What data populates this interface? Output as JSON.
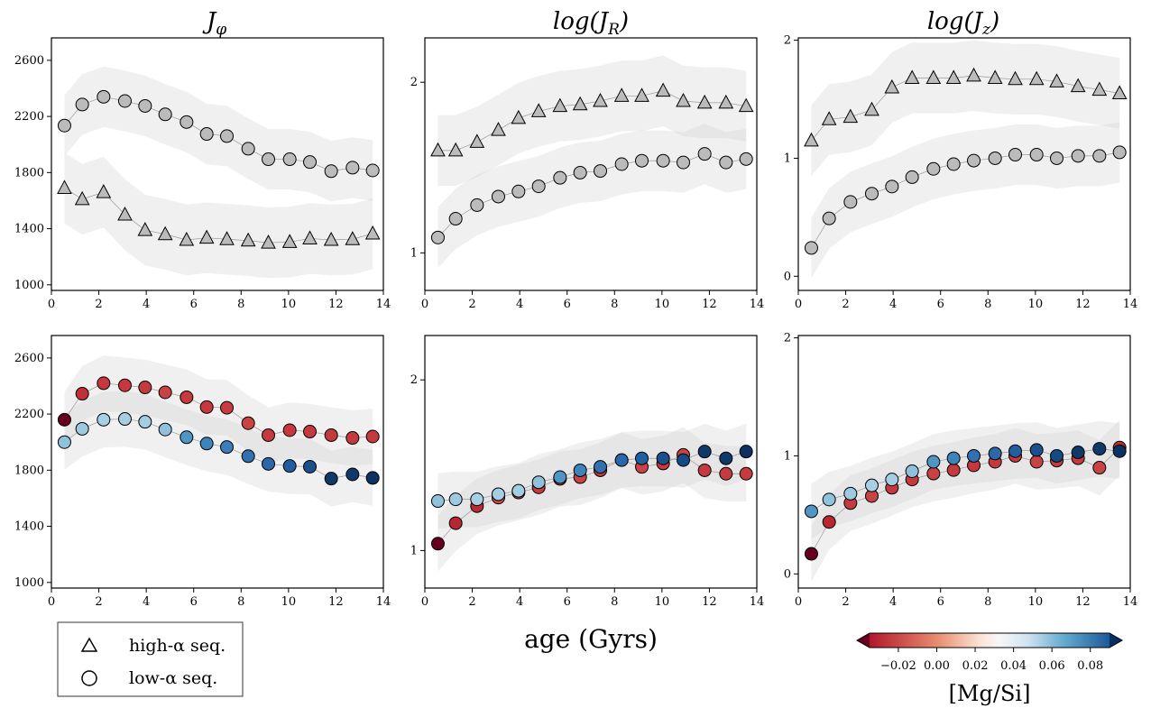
{
  "chart_data": [
    {
      "type": "scatter",
      "row": "top",
      "col": 0,
      "title": "J_φ",
      "xlabel": "",
      "ylabel": "",
      "xlim": [
        0,
        14
      ],
      "ylim": [
        960,
        2760
      ],
      "xticks": [
        0,
        2,
        4,
        6,
        8,
        10,
        12,
        14
      ],
      "yticks": [
        1000,
        1400,
        1800,
        2200,
        2600
      ],
      "grid": false,
      "series": [
        {
          "name": "high-α seq.",
          "marker": "triangle",
          "color": "#bbbbbb",
          "x": [
            0.55,
            1.3,
            2.2,
            3.1,
            3.95,
            4.8,
            5.7,
            6.55,
            7.4,
            8.3,
            9.15,
            10.05,
            10.9,
            11.8,
            12.7,
            13.55
          ],
          "y": [
            1690,
            1610,
            1660,
            1500,
            1390,
            1360,
            1320,
            1335,
            1325,
            1315,
            1300,
            1305,
            1330,
            1320,
            1325,
            1365
          ]
        },
        {
          "name": "low-α seq.",
          "marker": "circle",
          "color": "#bbbbbb",
          "x": [
            0.55,
            1.3,
            2.2,
            3.1,
            3.95,
            4.8,
            5.7,
            6.55,
            7.4,
            8.3,
            9.15,
            10.05,
            10.9,
            11.8,
            12.7,
            13.55
          ],
          "y": [
            2135,
            2285,
            2340,
            2310,
            2275,
            2215,
            2160,
            2075,
            2060,
            1970,
            1895,
            1895,
            1875,
            1810,
            1835,
            1815
          ]
        }
      ]
    },
    {
      "type": "scatter",
      "row": "top",
      "col": 1,
      "title": "log(J_R)",
      "xlabel": "",
      "ylabel": "",
      "xlim": [
        0,
        14
      ],
      "ylim": [
        0.78,
        2.26
      ],
      "xticks": [
        0,
        2,
        4,
        6,
        8,
        10,
        12,
        14
      ],
      "yticks": [
        1,
        2
      ],
      "grid": false,
      "series": [
        {
          "name": "high-α seq.",
          "marker": "triangle",
          "color": "#bbbbbb",
          "x": [
            0.55,
            1.3,
            2.2,
            3.1,
            3.95,
            4.8,
            5.7,
            6.55,
            7.4,
            8.3,
            9.15,
            10.05,
            10.9,
            11.8,
            12.7,
            13.55
          ],
          "y": [
            1.6,
            1.6,
            1.65,
            1.72,
            1.79,
            1.83,
            1.86,
            1.87,
            1.89,
            1.92,
            1.92,
            1.95,
            1.89,
            1.88,
            1.88,
            1.86
          ]
        },
        {
          "name": "low-α seq.",
          "marker": "circle",
          "color": "#bbbbbb",
          "x": [
            0.55,
            1.3,
            2.2,
            3.1,
            3.95,
            4.8,
            5.7,
            6.55,
            7.4,
            8.3,
            9.15,
            10.05,
            10.9,
            11.8,
            12.7,
            13.55
          ],
          "y": [
            1.09,
            1.2,
            1.28,
            1.33,
            1.36,
            1.39,
            1.44,
            1.47,
            1.48,
            1.52,
            1.54,
            1.54,
            1.53,
            1.58,
            1.53,
            1.55
          ]
        }
      ]
    },
    {
      "type": "scatter",
      "row": "top",
      "col": 2,
      "title": "log(J_z)",
      "xlabel": "",
      "ylabel": "",
      "xlim": [
        0,
        14
      ],
      "ylim": [
        -0.12,
        2.02
      ],
      "xticks": [
        0,
        2,
        4,
        6,
        8,
        10,
        12,
        14
      ],
      "yticks": [
        0,
        1,
        2
      ],
      "grid": false,
      "series": [
        {
          "name": "high-α seq.",
          "marker": "triangle",
          "color": "#bbbbbb",
          "x": [
            0.55,
            1.3,
            2.2,
            3.1,
            3.95,
            4.8,
            5.7,
            6.55,
            7.4,
            8.3,
            9.15,
            10.05,
            10.9,
            11.8,
            12.7,
            13.55
          ],
          "y": [
            1.15,
            1.33,
            1.35,
            1.41,
            1.6,
            1.68,
            1.68,
            1.68,
            1.7,
            1.68,
            1.67,
            1.67,
            1.65,
            1.61,
            1.58,
            1.55
          ]
        },
        {
          "name": "low-α seq.",
          "marker": "circle",
          "color": "#bbbbbb",
          "x": [
            0.55,
            1.3,
            2.2,
            3.1,
            3.95,
            4.8,
            5.7,
            6.55,
            7.4,
            8.3,
            9.15,
            10.05,
            10.9,
            11.8,
            12.7,
            13.55
          ],
          "y": [
            0.24,
            0.49,
            0.63,
            0.7,
            0.76,
            0.84,
            0.91,
            0.95,
            0.98,
            1.0,
            1.03,
            1.03,
            1.0,
            1.02,
            1.02,
            1.05
          ]
        }
      ]
    },
    {
      "type": "scatter",
      "row": "bottom",
      "col": 0,
      "title": "",
      "xlabel": "",
      "ylabel": "",
      "xlim": [
        0,
        14
      ],
      "ylim": [
        960,
        2760
      ],
      "xticks": [
        0,
        2,
        4,
        6,
        8,
        10,
        12,
        14
      ],
      "yticks": [
        1000,
        1400,
        1800,
        2200,
        2600
      ],
      "grid": false,
      "series": [
        {
          "marker": "circle",
          "x": [
            0.55,
            1.3,
            2.2,
            3.1,
            3.95,
            4.8,
            5.7,
            6.55,
            7.4,
            8.3,
            9.15,
            10.05,
            10.9,
            11.8,
            12.7,
            13.55
          ],
          "y": [
            2160,
            2345,
            2420,
            2405,
            2390,
            2355,
            2320,
            2250,
            2245,
            2135,
            2050,
            2085,
            2075,
            2050,
            2030,
            2040
          ],
          "colors": [
            "#67001f",
            "#c03037",
            "#c7373d",
            "#c7373d",
            "#c63a3f",
            "#c94244",
            "#c43a3e",
            "#c7393e",
            "#c63c40",
            "#c94244",
            "#c53a3f",
            "#c7373d",
            "#c53a3f",
            "#c43a3e",
            "#c53a3f",
            "#c43a3e"
          ]
        },
        {
          "marker": "circle",
          "x": [
            0.55,
            1.3,
            2.2,
            3.1,
            3.95,
            4.8,
            5.7,
            6.55,
            7.4,
            8.3,
            9.15,
            10.05,
            10.9,
            11.8,
            12.7,
            13.55
          ],
          "y": [
            2000,
            2095,
            2160,
            2165,
            2145,
            2090,
            2035,
            1990,
            1965,
            1900,
            1845,
            1830,
            1825,
            1740,
            1770,
            1745
          ],
          "colors": [
            "#8fc2dd",
            "#9dcae1",
            "#a8d0e4",
            "#a5cee3",
            "#a2cde2",
            "#8fc1dd",
            "#4f96c4",
            "#3d84bc",
            "#3a7fb9",
            "#3171b0",
            "#2a68a9",
            "#225e9f",
            "#1b508c",
            "#0e3969",
            "#0e3a6b",
            "#0d3262"
          ]
        }
      ]
    },
    {
      "type": "scatter",
      "row": "bottom",
      "col": 1,
      "title": "",
      "xlabel": "age (Gyrs)",
      "ylabel": "",
      "xlim": [
        0,
        14
      ],
      "ylim": [
        0.78,
        2.26
      ],
      "xticks": [
        0,
        2,
        4,
        6,
        8,
        10,
        12,
        14
      ],
      "yticks": [
        1,
        2
      ],
      "grid": false,
      "series": [
        {
          "marker": "circle",
          "x": [
            0.55,
            1.3,
            2.2,
            3.1,
            3.95,
            4.8,
            5.7,
            6.55,
            7.4,
            8.3,
            9.15,
            10.05,
            10.9,
            11.8,
            12.7,
            13.55
          ],
          "y": [
            1.04,
            1.16,
            1.26,
            1.31,
            1.34,
            1.37,
            1.42,
            1.43,
            1.47,
            1.53,
            1.49,
            1.51,
            1.56,
            1.47,
            1.45,
            1.45
          ],
          "colors": [
            "#67001f",
            "#b8262f",
            "#b92a31",
            "#cc4748",
            "#c94244",
            "#c43a3e",
            "#c7393e",
            "#c94244",
            "#c7373d",
            "#c63a3f",
            "#c94244",
            "#c7373d",
            "#c94244",
            "#c53a3f",
            "#c43a3e",
            "#c53a3f"
          ]
        },
        {
          "marker": "circle",
          "x": [
            0.55,
            1.3,
            2.2,
            3.1,
            3.95,
            4.8,
            5.7,
            6.55,
            7.4,
            8.3,
            9.15,
            10.05,
            10.9,
            11.8,
            12.7,
            13.55
          ],
          "y": [
            1.29,
            1.3,
            1.3,
            1.33,
            1.35,
            1.4,
            1.43,
            1.47,
            1.49,
            1.53,
            1.54,
            1.54,
            1.53,
            1.58,
            1.54,
            1.58
          ],
          "colors": [
            "#8fc2dd",
            "#9dcae1",
            "#a8d0e4",
            "#a5cee3",
            "#a2cde2",
            "#8fc1dd",
            "#4f96c4",
            "#3d84bc",
            "#3171b0",
            "#2a68a9",
            "#225e9f",
            "#1b508c",
            "#134b85",
            "#0e3969",
            "#0e3a6b",
            "#0d3262"
          ]
        }
      ]
    },
    {
      "type": "scatter",
      "row": "bottom",
      "col": 2,
      "title": "",
      "xlabel": "",
      "ylabel": "",
      "xlim": [
        0,
        14
      ],
      "ylim": [
        -0.12,
        2.02
      ],
      "xticks": [
        0,
        2,
        4,
        6,
        8,
        10,
        12,
        14
      ],
      "yticks": [
        0,
        1,
        2
      ],
      "grid": false,
      "series": [
        {
          "marker": "circle",
          "x": [
            0.55,
            1.3,
            2.2,
            3.1,
            3.95,
            4.8,
            5.7,
            6.55,
            7.4,
            8.3,
            9.15,
            10.05,
            10.9,
            11.8,
            12.7,
            13.55
          ],
          "y": [
            0.17,
            0.44,
            0.6,
            0.66,
            0.73,
            0.8,
            0.85,
            0.88,
            0.92,
            0.95,
            1.0,
            0.95,
            0.96,
            0.98,
            0.9,
            1.07
          ],
          "colors": [
            "#67001f",
            "#b8262f",
            "#c43a3e",
            "#c94244",
            "#c7373d",
            "#c63a3f",
            "#c94244",
            "#c53a3f",
            "#c7373d",
            "#c43a3e",
            "#c7373d",
            "#c94244",
            "#c53a3f",
            "#c43a3e",
            "#c94244",
            "#c03037"
          ]
        },
        {
          "marker": "circle",
          "x": [
            0.55,
            1.3,
            2.2,
            3.1,
            3.95,
            4.8,
            5.7,
            6.55,
            7.4,
            8.3,
            9.15,
            10.05,
            10.9,
            11.8,
            12.7,
            13.55
          ],
          "y": [
            0.53,
            0.63,
            0.68,
            0.75,
            0.8,
            0.87,
            0.95,
            0.98,
            1.0,
            1.02,
            1.04,
            1.05,
            1.0,
            1.03,
            1.06,
            1.04
          ],
          "colors": [
            "#4f96c4",
            "#8fc2dd",
            "#9dcae1",
            "#a8d0e4",
            "#a5cee3",
            "#8fc1dd",
            "#4f96c4",
            "#3d84bc",
            "#3171b0",
            "#2a68a9",
            "#225e9f",
            "#1b508c",
            "#134b85",
            "#0e3969",
            "#0e3a6b",
            "#0d3262"
          ]
        }
      ]
    }
  ],
  "legend": {
    "items": [
      {
        "marker": "triangle",
        "label": "high-α seq."
      },
      {
        "marker": "circle",
        "label": "low-α seq."
      }
    ]
  },
  "colorbar": {
    "label": "[Mg/Si]",
    "ticks": [
      "−0.02",
      "0.00",
      "0.02",
      "0.04",
      "0.06",
      "0.08"
    ],
    "tick_values": [
      -0.02,
      0.0,
      0.02,
      0.04,
      0.06,
      0.08
    ],
    "range": [
      -0.035,
      0.09
    ],
    "cmap": "RdBu"
  }
}
